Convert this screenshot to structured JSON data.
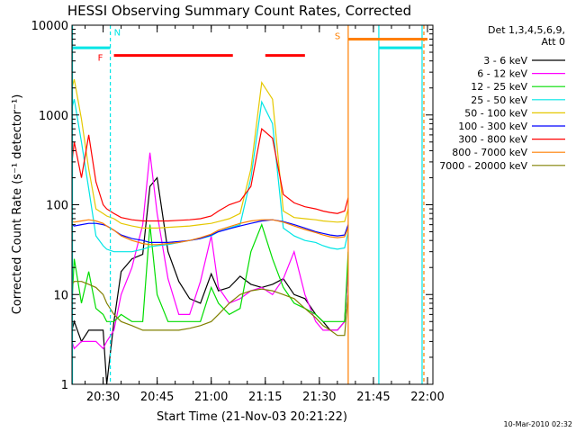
{
  "chart_data": {
    "type": "line",
    "title": "HESSI Observing Summary Count Rates, Corrected",
    "xlabel": "Start Time (21-Nov-03 20:21:22)",
    "ylabel": "Corrected Count Rate (s⁻¹ detector⁻¹)",
    "yscale": "log",
    "ylim": [
      1,
      10000
    ],
    "xlim": [
      "20:21:22",
      "22:01:30"
    ],
    "x_ticks": [
      "20:30",
      "20:45",
      "21:00",
      "21:15",
      "21:30",
      "21:45",
      "22:00"
    ],
    "y_ticks": [
      "1",
      "10",
      "100",
      "1000",
      "10000"
    ],
    "legend": {
      "title_line1": "Det 1,3,4,5,6,9,",
      "title_line2": "Att 0",
      "placement": "outside-right"
    },
    "footer": "10-Mar-2010 02:32",
    "series": [
      {
        "name": "3 - 6 keV",
        "color": "#000000",
        "x": [
          "20:21:22",
          "20:22",
          "20:24",
          "20:26",
          "20:28",
          "20:30",
          "20:31",
          "20:33",
          "20:35",
          "20:38",
          "20:41",
          "20:43",
          "20:45",
          "20:48",
          "20:51",
          "20:54",
          "20:57",
          "21:00",
          "21:02",
          "21:05",
          "21:08",
          "21:11",
          "21:14",
          "21:17",
          "21:20",
          "21:23",
          "21:26",
          "21:29",
          "21:31",
          "21:33",
          "21:35",
          "21:37",
          "21:38"
        ],
        "y": [
          4,
          5,
          3,
          4,
          4,
          4,
          1,
          5,
          18,
          25,
          28,
          160,
          200,
          30,
          14,
          9,
          8,
          17,
          11,
          12,
          16,
          13,
          12,
          13,
          15,
          10,
          9,
          6,
          5,
          4,
          4,
          5,
          20
        ]
      },
      {
        "name": "6 - 12 keV",
        "color": "#ff00ff",
        "x": [
          "20:21:22",
          "20:22",
          "20:24",
          "20:26",
          "20:28",
          "20:30",
          "20:31",
          "20:33",
          "20:35",
          "20:38",
          "20:41",
          "20:43",
          "20:45",
          "20:48",
          "20:51",
          "20:54",
          "20:57",
          "21:00",
          "21:02",
          "21:05",
          "21:08",
          "21:11",
          "21:14",
          "21:17",
          "21:20",
          "21:23",
          "21:26",
          "21:29",
          "21:31",
          "21:33",
          "21:35",
          "21:37",
          "21:38"
        ],
        "y": [
          3,
          2.5,
          3,
          3,
          3,
          2.5,
          3,
          4,
          10,
          20,
          60,
          380,
          80,
          15,
          6,
          6,
          14,
          45,
          12,
          8,
          9,
          11,
          12,
          10,
          15,
          30,
          10,
          5,
          4,
          4,
          4,
          5,
          20
        ]
      },
      {
        "name": "12 - 25 keV",
        "color": "#00dd00",
        "x": [
          "20:21:22",
          "20:22",
          "20:24",
          "20:26",
          "20:28",
          "20:30",
          "20:31",
          "20:33",
          "20:35",
          "20:38",
          "20:41",
          "20:43",
          "20:45",
          "20:48",
          "20:51",
          "20:54",
          "20:57",
          "21:00",
          "21:02",
          "21:05",
          "21:08",
          "21:11",
          "21:14",
          "21:17",
          "21:20",
          "21:23",
          "21:26",
          "21:29",
          "21:31",
          "21:33",
          "21:35",
          "21:37",
          "21:38"
        ],
        "y": [
          8,
          25,
          8,
          18,
          7,
          6,
          5,
          5,
          6,
          5,
          5,
          60,
          10,
          5,
          5,
          5,
          5,
          12,
          8,
          6,
          7,
          30,
          60,
          25,
          12,
          8,
          7,
          6,
          5,
          5,
          5,
          5,
          30
        ]
      },
      {
        "name": "25 - 50 keV",
        "color": "#00e5e5",
        "x": [
          "20:21:22",
          "20:22",
          "20:24",
          "20:26",
          "20:28",
          "20:30",
          "20:31",
          "20:33",
          "20:35",
          "20:38",
          "20:41",
          "20:43",
          "20:45",
          "20:48",
          "20:51",
          "20:54",
          "20:57",
          "21:00",
          "21:02",
          "21:05",
          "21:08",
          "21:11",
          "21:14",
          "21:17",
          "21:20",
          "21:23",
          "21:26",
          "21:29",
          "21:31",
          "21:33",
          "21:35",
          "21:37",
          "21:38"
        ],
        "y": [
          1200,
          1500,
          500,
          150,
          45,
          35,
          32,
          30,
          30,
          30,
          32,
          34,
          35,
          36,
          38,
          40,
          42,
          45,
          50,
          55,
          60,
          200,
          1400,
          800,
          55,
          45,
          40,
          38,
          35,
          33,
          32,
          33,
          50
        ]
      },
      {
        "name": "50 - 100 keV",
        "color": "#e5c800",
        "x": [
          "20:21:22",
          "20:22",
          "20:24",
          "20:26",
          "20:28",
          "20:30",
          "20:31",
          "20:33",
          "20:35",
          "20:38",
          "20:41",
          "20:43",
          "20:45",
          "20:48",
          "20:51",
          "20:54",
          "20:57",
          "21:00",
          "21:02",
          "21:05",
          "21:08",
          "21:11",
          "21:14",
          "21:17",
          "21:20",
          "21:23",
          "21:26",
          "21:29",
          "21:31",
          "21:33",
          "21:35",
          "21:37",
          "21:38"
        ],
        "y": [
          2000,
          2500,
          900,
          250,
          90,
          80,
          75,
          70,
          62,
          58,
          55,
          55,
          55,
          56,
          57,
          58,
          60,
          62,
          65,
          70,
          80,
          250,
          2300,
          1500,
          85,
          72,
          70,
          68,
          66,
          65,
          64,
          65,
          90
        ]
      },
      {
        "name": "100 - 300 keV",
        "color": "#0000ff",
        "x": [
          "20:21:22",
          "20:22",
          "20:24",
          "20:26",
          "20:28",
          "20:30",
          "20:31",
          "20:33",
          "20:35",
          "20:38",
          "20:41",
          "20:43",
          "20:45",
          "20:48",
          "20:51",
          "20:54",
          "20:57",
          "21:00",
          "21:02",
          "21:05",
          "21:08",
          "21:11",
          "21:14",
          "21:17",
          "21:20",
          "21:23",
          "21:26",
          "21:29",
          "21:31",
          "21:33",
          "21:35",
          "21:37",
          "21:38"
        ],
        "y": [
          60,
          58,
          60,
          62,
          62,
          60,
          58,
          52,
          46,
          42,
          40,
          38,
          38,
          38,
          39,
          40,
          42,
          46,
          50,
          54,
          58,
          62,
          66,
          68,
          65,
          60,
          55,
          50,
          48,
          46,
          45,
          46,
          60
        ]
      },
      {
        "name": "300 - 800 keV",
        "color": "#ff0000",
        "x": [
          "20:21:22",
          "20:22",
          "20:24",
          "20:26",
          "20:28",
          "20:30",
          "20:31",
          "20:33",
          "20:35",
          "20:38",
          "20:41",
          "20:43",
          "20:45",
          "20:48",
          "20:51",
          "20:54",
          "20:57",
          "21:00",
          "21:02",
          "21:05",
          "21:08",
          "21:11",
          "21:14",
          "21:17",
          "21:20",
          "21:23",
          "21:26",
          "21:29",
          "21:31",
          "21:33",
          "21:35",
          "21:37",
          "21:38"
        ],
        "y": [
          300,
          500,
          200,
          600,
          180,
          100,
          90,
          80,
          72,
          68,
          66,
          66,
          66,
          66,
          67,
          68,
          70,
          75,
          85,
          100,
          110,
          160,
          700,
          550,
          130,
          105,
          95,
          90,
          85,
          82,
          80,
          85,
          120
        ]
      },
      {
        "name": "800 - 7000 keV",
        "color": "#ff7f00",
        "x": [
          "20:21:22",
          "20:22",
          "20:24",
          "20:26",
          "20:28",
          "20:30",
          "20:31",
          "20:33",
          "20:35",
          "20:38",
          "20:41",
          "20:43",
          "20:45",
          "20:48",
          "20:51",
          "20:54",
          "20:57",
          "21:00",
          "21:02",
          "21:05",
          "21:08",
          "21:11",
          "21:14",
          "21:17",
          "21:20",
          "21:23",
          "21:26",
          "21:29",
          "21:31",
          "21:33",
          "21:35",
          "21:37",
          "21:38"
        ],
        "y": [
          65,
          64,
          66,
          68,
          66,
          62,
          58,
          52,
          45,
          40,
          37,
          36,
          36,
          37,
          38,
          40,
          43,
          47,
          52,
          57,
          62,
          66,
          68,
          68,
          64,
          58,
          53,
          49,
          46,
          44,
          43,
          44,
          55
        ]
      },
      {
        "name": "7000 - 20000 keV",
        "color": "#808000",
        "x": [
          "20:21:22",
          "20:22",
          "20:24",
          "20:26",
          "20:28",
          "20:30",
          "20:31",
          "20:33",
          "20:35",
          "20:38",
          "20:41",
          "20:43",
          "20:45",
          "20:48",
          "20:51",
          "20:54",
          "20:57",
          "21:00",
          "21:02",
          "21:05",
          "21:08",
          "21:11",
          "21:14",
          "21:17",
          "21:20",
          "21:23",
          "21:26",
          "21:29",
          "21:31",
          "21:33",
          "21:35",
          "21:37",
          "21:38"
        ],
        "y": [
          13,
          14,
          14,
          13,
          12,
          10,
          8,
          6,
          5,
          4.5,
          4,
          4,
          4,
          4,
          4,
          4.2,
          4.5,
          5,
          6,
          8,
          10,
          11,
          11.5,
          11,
          10,
          9,
          7,
          5.5,
          4.5,
          4,
          3.5,
          3.5,
          10
        ]
      }
    ],
    "markers": {
      "flags": [
        {
          "label": "N",
          "color": "#00e5e5",
          "x": "20:32:00"
        },
        {
          "label": "F",
          "color": "#ff0000",
          "x": "20:31:30"
        },
        {
          "label": "S",
          "color": "#ff7f00",
          "x": "21:37:30"
        }
      ],
      "night_bars": [
        {
          "color": "#00e5e5",
          "start": "20:21:22",
          "end": "20:32:00",
          "y": 5600
        },
        {
          "color": "#00e5e5",
          "start": "21:46:30",
          "end": "21:58:30",
          "y": 5600
        }
      ],
      "flare_bars": [
        {
          "color": "#ff0000",
          "start": "20:33:00",
          "end": "21:06:00",
          "y": 4600
        },
        {
          "color": "#ff0000",
          "start": "21:15:00",
          "end": "21:26:00",
          "y": 4600
        }
      ],
      "saa_bars": [
        {
          "color": "#ff7f00",
          "start": "21:38:00",
          "end": "22:00:00",
          "y": 7000
        }
      ],
      "vlines": [
        {
          "color": "#00e5e5",
          "x": "20:21:30",
          "style": "solid"
        },
        {
          "color": "#00e5e5",
          "x": "20:32:00",
          "style": "dashed"
        },
        {
          "color": "#ff7f00",
          "x": "21:38:00",
          "style": "solid"
        },
        {
          "color": "#00e5e5",
          "x": "21:46:30",
          "style": "solid"
        },
        {
          "color": "#00e5e5",
          "x": "21:58:30",
          "style": "solid"
        },
        {
          "color": "#ff7f00",
          "x": "21:59:00",
          "style": "dashed"
        }
      ]
    }
  }
}
